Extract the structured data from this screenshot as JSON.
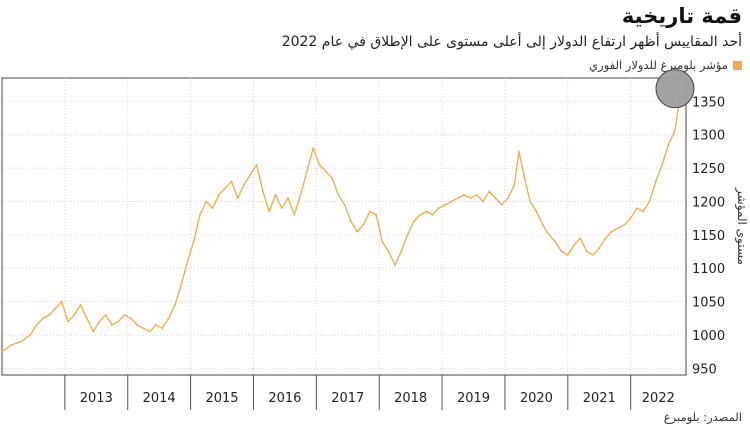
{
  "title": "قمة تاريخية",
  "subtitle": "أحد المقاييس أظهر ارتفاع الدولار إلى أعلى مستوى على الإطلاق في عام 2022",
  "legend": {
    "label": "مؤشر بلومبرغ للدولار الفوري",
    "color": "#f7a84a"
  },
  "source": "المصدر: بلومبرغ",
  "chart_data": {
    "type": "line",
    "title": "قمة تاريخية",
    "ylabel": "مستوى المؤشر",
    "ylim": [
      940,
      1385
    ],
    "yticks": [
      950,
      1000,
      1050,
      1100,
      1150,
      1200,
      1250,
      1300,
      1350
    ],
    "xlim": [
      2012.0,
      2022.88
    ],
    "xtick_labels": [
      "2013",
      "2014",
      "2015",
      "2016",
      "2017",
      "2018",
      "2019",
      "2020",
      "2021",
      "2022"
    ],
    "grid": true,
    "annotation": "grey circle highlighting the 2022 all-time high",
    "series": [
      {
        "name": "مؤشر بلومبرغ للدولار الفوري",
        "color": "#f7a84a",
        "x": [
          2012.0,
          2012.15,
          2012.3,
          2012.45,
          2012.55,
          2012.65,
          2012.75,
          2012.85,
          2012.95,
          2013.05,
          2013.15,
          2013.25,
          2013.35,
          2013.45,
          2013.55,
          2013.65,
          2013.75,
          2013.85,
          2013.95,
          2014.05,
          2014.15,
          2014.25,
          2014.35,
          2014.45,
          2014.55,
          2014.65,
          2014.75,
          2014.85,
          2014.95,
          2015.05,
          2015.15,
          2015.25,
          2015.35,
          2015.45,
          2015.55,
          2015.65,
          2015.75,
          2015.85,
          2015.95,
          2016.05,
          2016.15,
          2016.25,
          2016.35,
          2016.45,
          2016.55,
          2016.65,
          2016.75,
          2016.85,
          2016.95,
          2017.05,
          2017.15,
          2017.25,
          2017.35,
          2017.45,
          2017.55,
          2017.65,
          2017.75,
          2017.85,
          2017.95,
          2018.05,
          2018.15,
          2018.25,
          2018.35,
          2018.45,
          2018.55,
          2018.65,
          2018.75,
          2018.85,
          2018.95,
          2019.05,
          2019.15,
          2019.25,
          2019.35,
          2019.45,
          2019.55,
          2019.65,
          2019.75,
          2019.85,
          2019.95,
          2020.05,
          2020.15,
          2020.22,
          2020.3,
          2020.4,
          2020.5,
          2020.6,
          2020.7,
          2020.8,
          2020.9,
          2021.0,
          2021.1,
          2021.2,
          2021.3,
          2021.4,
          2021.5,
          2021.6,
          2021.7,
          2021.8,
          2021.9,
          2022.0,
          2022.1,
          2022.2,
          2022.3,
          2022.4,
          2022.5,
          2022.6,
          2022.7,
          2022.75,
          2022.8
        ],
        "y": [
          975,
          985,
          990,
          1000,
          1015,
          1025,
          1030,
          1040,
          1050,
          1020,
          1030,
          1045,
          1025,
          1005,
          1020,
          1030,
          1015,
          1020,
          1030,
          1025,
          1015,
          1010,
          1005,
          1015,
          1010,
          1025,
          1045,
          1075,
          1110,
          1140,
          1180,
          1200,
          1190,
          1210,
          1220,
          1230,
          1205,
          1225,
          1240,
          1255,
          1215,
          1185,
          1210,
          1190,
          1205,
          1180,
          1210,
          1245,
          1280,
          1255,
          1245,
          1235,
          1210,
          1195,
          1170,
          1155,
          1165,
          1185,
          1180,
          1140,
          1125,
          1105,
          1125,
          1150,
          1170,
          1180,
          1185,
          1180,
          1190,
          1195,
          1200,
          1205,
          1210,
          1205,
          1210,
          1200,
          1215,
          1205,
          1195,
          1205,
          1225,
          1275,
          1240,
          1200,
          1185,
          1165,
          1150,
          1140,
          1125,
          1120,
          1135,
          1145,
          1125,
          1120,
          1130,
          1145,
          1155,
          1160,
          1165,
          1175,
          1190,
          1185,
          1200,
          1230,
          1255,
          1285,
          1305,
          1335,
          1360
        ]
      }
    ]
  }
}
